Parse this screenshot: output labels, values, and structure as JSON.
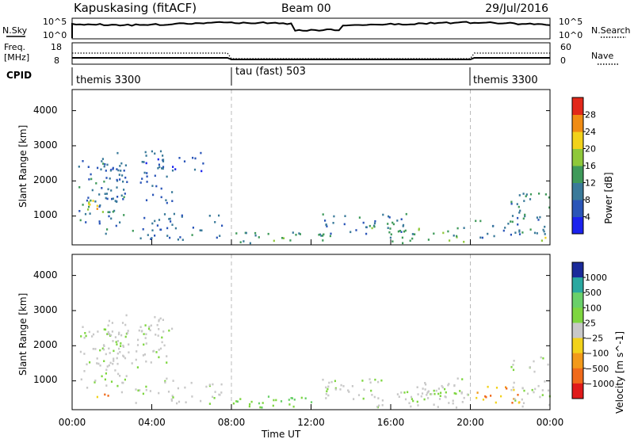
{
  "header": {
    "station": "Kapuskasing (fitACF)",
    "beam": "Beam 00",
    "date": "29/Jul/2016"
  },
  "noise_panel": {
    "left_label": "N.Sky",
    "right_label": "N.Search",
    "left_ticks": [
      "10^5",
      "10^0"
    ],
    "right_ticks": [
      "10^5",
      "10^0"
    ]
  },
  "freq_panel": {
    "left_label_1": "Freq.",
    "left_label_2": "[MHz]",
    "right_label": "Nave",
    "left_ticks": [
      "18",
      "8"
    ],
    "right_ticks": [
      "60",
      "0"
    ]
  },
  "cpid_panel": {
    "label": "CPID",
    "segments": [
      {
        "name": "themis 3300",
        "start": "00:00",
        "end": "08:00"
      },
      {
        "name": "tau (fast) 503",
        "start": "08:00",
        "end": "20:00"
      },
      {
        "name": "themis 3300",
        "start": "20:00",
        "end": "00:00"
      }
    ]
  },
  "time_axis": {
    "title": "Time UT",
    "ticks": [
      "00:00",
      "04:00",
      "08:00",
      "12:00",
      "16:00",
      "20:00",
      "00:00"
    ]
  },
  "chart_data": [
    {
      "type": "heatmap",
      "title": "Power",
      "xlabel": "Time UT",
      "ylabel": "Slant Range [km]",
      "xlim": [
        0,
        24
      ],
      "ylim": [
        180,
        4600
      ],
      "yticks": [
        "1000",
        "2000",
        "3000",
        "4000"
      ],
      "colorbar": {
        "label": "Power [dB]",
        "tick_labels": [
          "4",
          "8",
          "12",
          "16",
          "20",
          "24",
          "28"
        ],
        "range": [
          0,
          30
        ],
        "colors": [
          "#1b22ee",
          "#2a55b8",
          "#3a7a9a",
          "#3f9a5a",
          "#8fc83a",
          "#f2d21a",
          "#f08c14",
          "#e2281a"
        ]
      },
      "regions": [
        {
          "t0": 0.4,
          "t1": 1.6,
          "r0": 1000,
          "r1": 1500,
          "level": 20
        },
        {
          "t0": 0.3,
          "t1": 2.8,
          "r0": 700,
          "r1": 2600,
          "level": 8
        },
        {
          "t0": 1.5,
          "t1": 5.0,
          "r0": 1400,
          "r1": 2900,
          "level": 6
        },
        {
          "t0": 0.5,
          "t1": 1.8,
          "r0": 500,
          "r1": 650,
          "level": 10
        },
        {
          "t0": 3.0,
          "t1": 7.5,
          "r0": 350,
          "r1": 1100,
          "level": 7
        },
        {
          "t0": 5.0,
          "t1": 6.7,
          "r0": 2300,
          "r1": 2900,
          "level": 6
        },
        {
          "t0": 8.0,
          "t1": 13.0,
          "r0": 250,
          "r1": 600,
          "level": 12
        },
        {
          "t0": 12.5,
          "t1": 17.0,
          "r0": 500,
          "r1": 1100,
          "level": 8
        },
        {
          "t0": 15.0,
          "t1": 19.8,
          "r0": 250,
          "r1": 700,
          "level": 14
        },
        {
          "t0": 20.2,
          "t1": 22.5,
          "r0": 400,
          "r1": 900,
          "level": 8
        },
        {
          "t0": 22.0,
          "t1": 24.0,
          "r0": 300,
          "r1": 1700,
          "level": 9
        },
        {
          "t0": 23.0,
          "t1": 24.0,
          "r0": 250,
          "r1": 500,
          "level": 18
        }
      ]
    },
    {
      "type": "heatmap",
      "title": "Velocity",
      "xlabel": "Time UT",
      "ylabel": "Slant Range [km]",
      "xlim": [
        0,
        24
      ],
      "ylim": [
        180,
        4600
      ],
      "yticks": [
        "1000",
        "2000",
        "3000",
        "4000"
      ],
      "colorbar": {
        "label": "Velocity [m s^-1]",
        "tick_labels": [
          "1000",
          "500",
          "100",
          "25",
          "−25",
          "−100",
          "−500",
          "−1000"
        ],
        "colors": [
          "#1a2a9a",
          "#2aa8a0",
          "#6ad06a",
          "#7ed640",
          "#c8c8c8",
          "#f2d21a",
          "#f29a1a",
          "#f06a1a",
          "#e01a1a"
        ]
      },
      "regions": [
        {
          "t0": 0.3,
          "t1": 2.8,
          "r0": 700,
          "r1": 2600,
          "class": "gray"
        },
        {
          "t0": 1.5,
          "t1": 5.0,
          "r0": 1400,
          "r1": 2900,
          "class": "gray"
        },
        {
          "t0": 0.5,
          "t1": 1.8,
          "r0": 500,
          "r1": 650,
          "class": "orange"
        },
        {
          "t0": 3.0,
          "t1": 7.5,
          "r0": 350,
          "r1": 1100,
          "class": "gray"
        },
        {
          "t0": 8.0,
          "t1": 13.0,
          "r0": 250,
          "r1": 600,
          "class": "green"
        },
        {
          "t0": 12.5,
          "t1": 20.0,
          "r0": 500,
          "r1": 1100,
          "class": "gray"
        },
        {
          "t0": 15.0,
          "t1": 19.8,
          "r0": 250,
          "r1": 700,
          "class": "gray"
        },
        {
          "t0": 20.2,
          "t1": 22.5,
          "r0": 400,
          "r1": 900,
          "class": "orange"
        },
        {
          "t0": 22.0,
          "t1": 24.0,
          "r0": 300,
          "r1": 1700,
          "class": "gray"
        }
      ]
    }
  ]
}
